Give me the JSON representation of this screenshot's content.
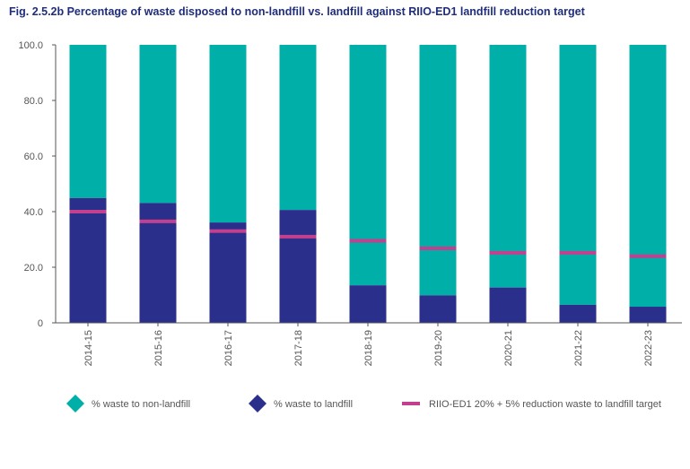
{
  "chart_data": {
    "type": "bar",
    "stacked": true,
    "title": "Fig. 2.5.2b Percentage of waste disposed to non-landfill vs. landfill against RIIO-ED1 landfill reduction target",
    "xlabel": "",
    "ylabel": "",
    "ylim": [
      0,
      100
    ],
    "yticks": [
      "0",
      "20.0",
      "40.0",
      "60.0",
      "80.0",
      "100.0"
    ],
    "grid": false,
    "legend_position": "bottom",
    "categories": [
      "2014-15",
      "2015-16",
      "2016-17",
      "2017-18",
      "2018-19",
      "2019-20",
      "2020-21",
      "2021-22",
      "2022-23"
    ],
    "series": [
      {
        "name": "% waste to non-landfill",
        "color": "#00b0a8",
        "values": [
          55.1,
          56.9,
          63.9,
          59.4,
          86.5,
          90.1,
          87.3,
          93.5,
          94.2
        ]
      },
      {
        "name": "% waste to landfill",
        "color": "#2a2f8c",
        "values": [
          44.9,
          43.1,
          36.1,
          40.6,
          13.5,
          9.9,
          12.7,
          6.5,
          5.8
        ]
      }
    ],
    "target": {
      "name": "RIIO-ED1 20% + 5% reduction waste to landfill target",
      "color": "#c2408e",
      "values": [
        40.0,
        36.5,
        33.0,
        31.0,
        29.5,
        26.8,
        25.2,
        25.2,
        24.0
      ]
    }
  }
}
